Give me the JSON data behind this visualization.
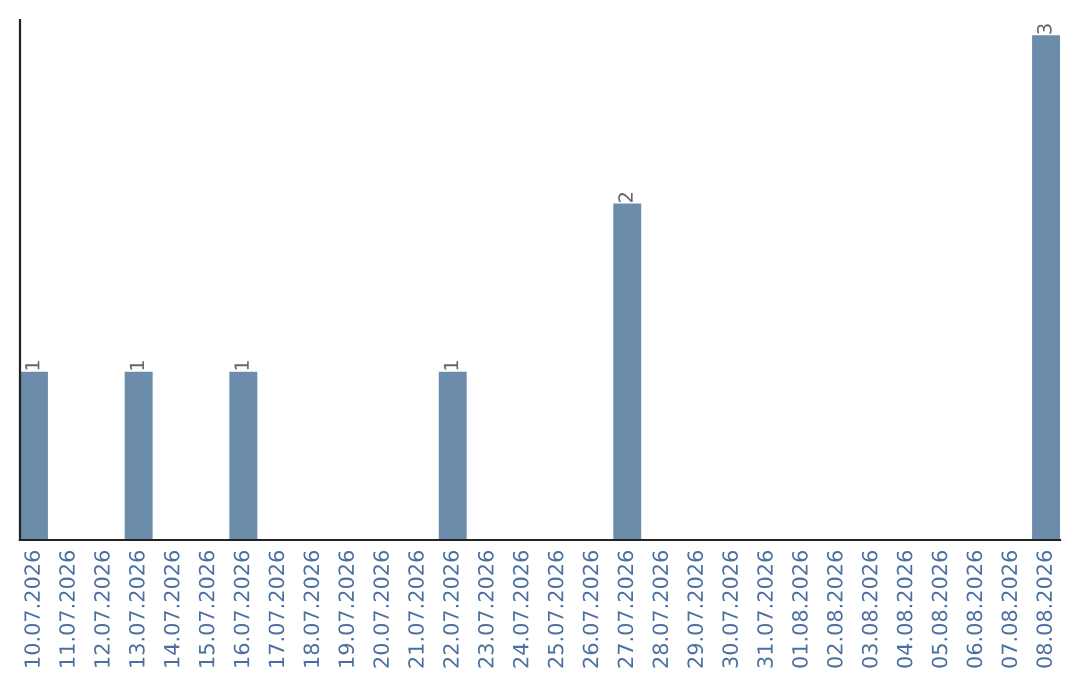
{
  "chart_data": {
    "type": "bar",
    "categories": [
      "10.07.2026",
      "11.07.2026",
      "12.07.2026",
      "13.07.2026",
      "14.07.2026",
      "15.07.2026",
      "16.07.2026",
      "17.07.2026",
      "18.07.2026",
      "19.07.2026",
      "20.07.2026",
      "21.07.2026",
      "22.07.2026",
      "23.07.2026",
      "24.07.2026",
      "25.07.2026",
      "26.07.2026",
      "27.07.2026",
      "28.07.2026",
      "29.07.2026",
      "30.07.2026",
      "31.07.2026",
      "01.08.2026",
      "02.08.2026",
      "03.08.2026",
      "04.08.2026",
      "05.08.2026",
      "06.08.2026",
      "07.08.2026",
      "08.08.2026"
    ],
    "values": [
      1,
      0,
      0,
      1,
      0,
      0,
      1,
      0,
      0,
      0,
      0,
      0,
      1,
      0,
      0,
      0,
      0,
      2,
      0,
      0,
      0,
      0,
      0,
      0,
      0,
      0,
      0,
      0,
      0,
      3
    ],
    "value_labels": [
      "1",
      null,
      null,
      "1",
      null,
      null,
      "1",
      null,
      null,
      null,
      null,
      null,
      "1",
      null,
      null,
      null,
      null,
      "2",
      null,
      null,
      null,
      null,
      null,
      null,
      null,
      null,
      null,
      null,
      null,
      "3"
    ],
    "color": "#6b8cab",
    "tick_labels": "x",
    "grid": false,
    "legend": false
  }
}
